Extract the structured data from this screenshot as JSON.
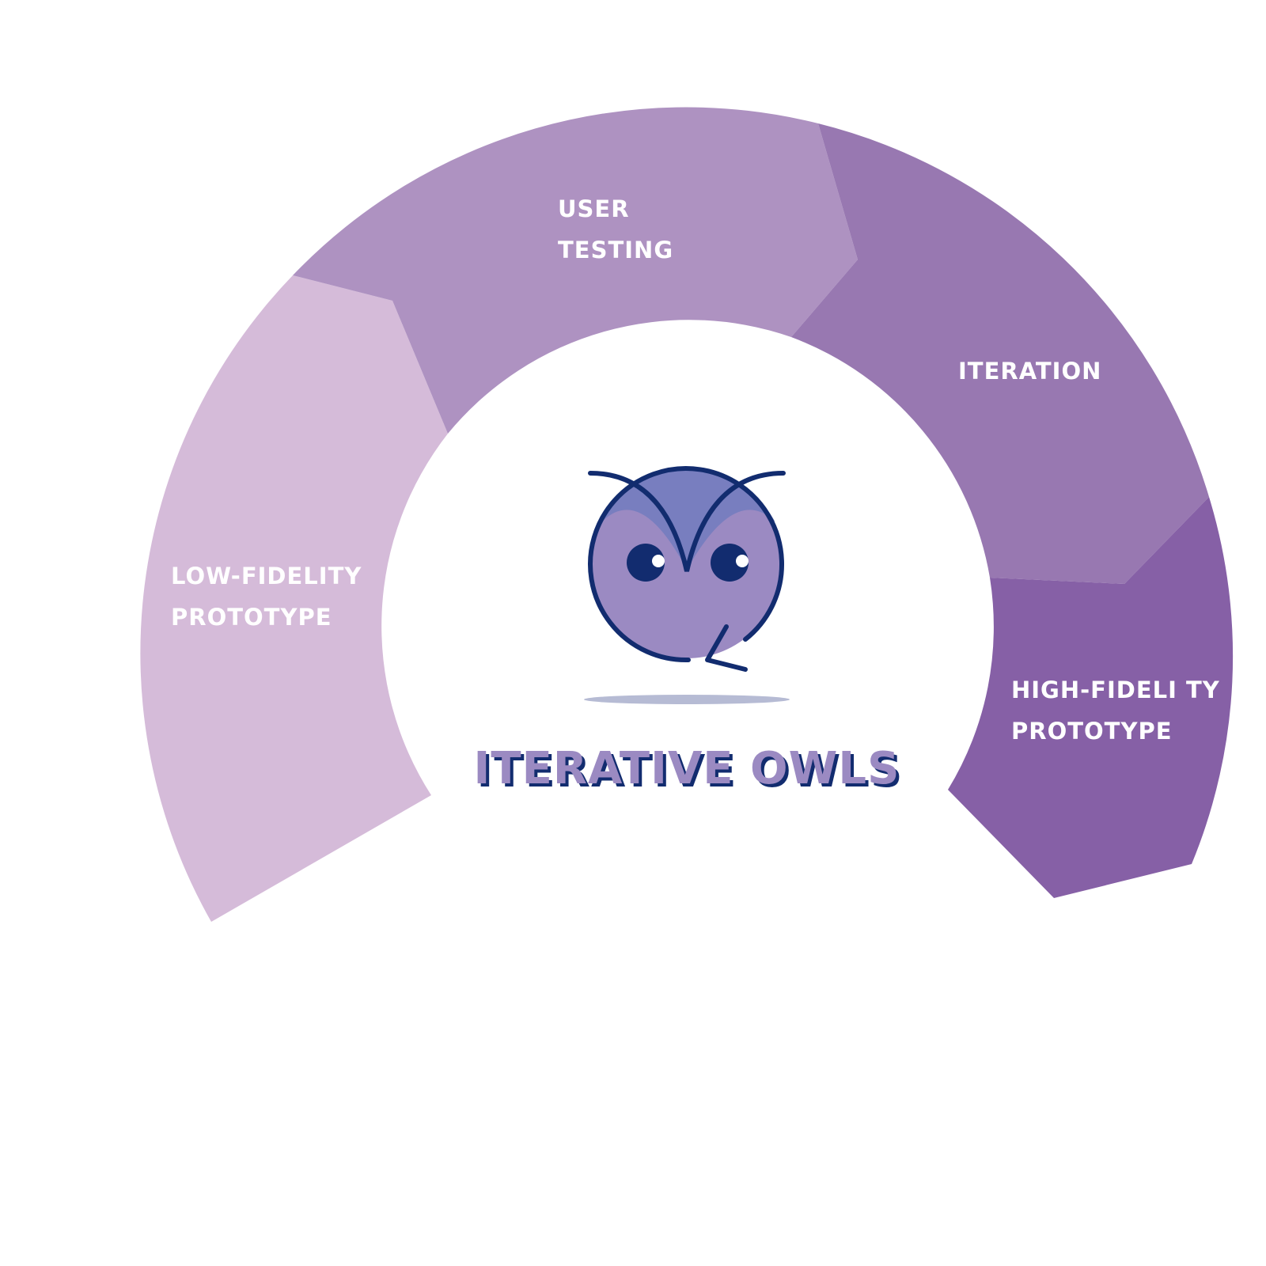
{
  "diagram": {
    "segments": [
      {
        "id": "low-fidelity",
        "lines": [
          "LOW-FIDELITY",
          "PROTOTYPE"
        ],
        "color": "#d5bbd9"
      },
      {
        "id": "user-testing",
        "lines": [
          "USER",
          "TESTING"
        ],
        "color": "#ae92c1"
      },
      {
        "id": "iteration",
        "lines": [
          "ITERATION",
          ""
        ],
        "color": "#9878b1"
      },
      {
        "id": "high-fidelity",
        "lines": [
          "HIGH-FIDELI TY",
          "PROTOTYPE"
        ],
        "color": "#8660a6"
      }
    ]
  },
  "logo": {
    "name": "ITERATIVE OWLS",
    "icon": "owl-icon",
    "fill_color": "#9b8ac2",
    "outline_color": "#122c6f",
    "shadow_color": "#b6bbd4"
  }
}
